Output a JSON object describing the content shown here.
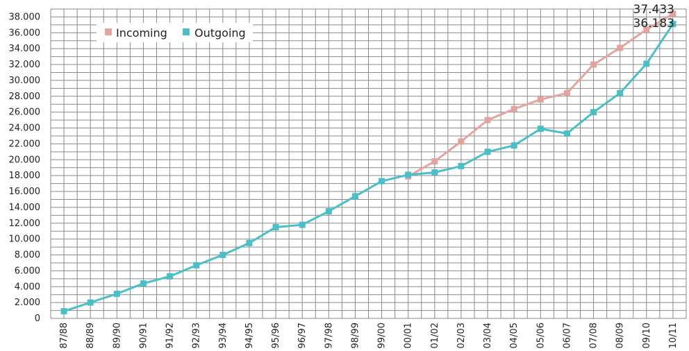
{
  "chart_data": {
    "type": "line",
    "categories": [
      "87/88",
      "88/89",
      "89/90",
      "90/91",
      "91/92",
      "92/93",
      "93/94",
      "94/95",
      "95/96",
      "96/97",
      "97/98",
      "98/99",
      "99/00",
      "00/01",
      "01/02",
      "02/03",
      "03/04",
      "04/05",
      "05/06",
      "06/07",
      "07/08",
      "08/09",
      "09/10",
      "10/11"
    ],
    "series": [
      {
        "name": "Incoming",
        "color": "#e3a49f",
        "values": [
          null,
          null,
          null,
          null,
          null,
          null,
          null,
          null,
          null,
          null,
          null,
          null,
          null,
          17900,
          19800,
          22300,
          25000,
          26400,
          27600,
          28400,
          32000,
          34100,
          36400,
          38400
        ]
      },
      {
        "name": "Outgoing",
        "color": "#4bbfc8",
        "values": [
          900,
          2000,
          3100,
          4400,
          5300,
          6700,
          8000,
          9500,
          11500,
          11800,
          13500,
          15400,
          17300,
          18100,
          18400,
          19200,
          21000,
          21800,
          23900,
          23300,
          26000,
          28400,
          32100,
          37100
        ]
      }
    ],
    "yticks": [
      "0",
      "2.000",
      "4.000",
      "6.000",
      "8.000",
      "10.000",
      "12.000",
      "14.000",
      "16.000",
      "18.000",
      "20.000",
      "22.000",
      "24.000",
      "26.000",
      "28.000",
      "30.000",
      "32.000",
      "34.000",
      "36.000",
      "38.000"
    ],
    "ylim": [
      0,
      38000
    ],
    "grid": true,
    "legend": "top-left",
    "annotations": [
      "37.433",
      "36.183"
    ],
    "title": "",
    "xlabel": "",
    "ylabel": ""
  }
}
